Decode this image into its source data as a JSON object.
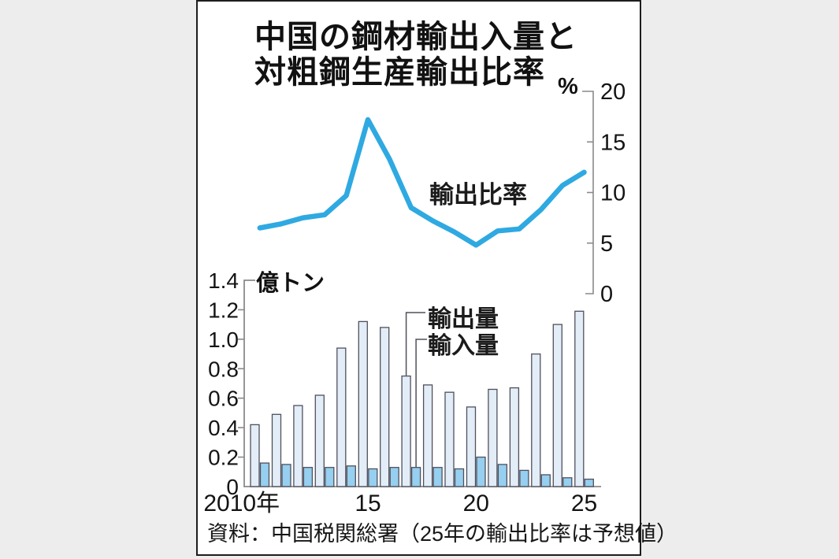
{
  "title": {
    "line1": "中国の鋼材輸出入量と",
    "line2": "対粗鋼生産輸出比率"
  },
  "source_note": "資料：中国税関総署（25年の輸出比率は予想値）",
  "colors": {
    "ratio_line": "#2fa9e1",
    "export_bar_fill": "#e2edf8",
    "import_bar_fill": "#96cfef",
    "bar_stroke": "#50505c",
    "axis": "#8a8a8a",
    "panel_border": "#1d1d1f",
    "background": "#ededee"
  },
  "chart_data": [
    {
      "type": "line",
      "name": "輸出比率",
      "unit": "%",
      "legend_position": "inline-center",
      "axis_side": "right",
      "grid": false,
      "x": [
        2010,
        2011,
        2012,
        2013,
        2014,
        2015,
        2016,
        2017,
        2018,
        2019,
        2020,
        2021,
        2022,
        2023,
        2024,
        2025
      ],
      "values": [
        6.5,
        6.9,
        7.5,
        7.8,
        9.7,
        17.2,
        13.3,
        8.5,
        7.2,
        6.1,
        4.8,
        6.2,
        6.4,
        8.3,
        10.7,
        12.0
      ],
      "ylim": [
        0,
        20
      ],
      "ytick_labels": [
        "20",
        "15",
        "10",
        "5",
        "0"
      ],
      "note": "25年の輸出比率は予想値"
    },
    {
      "type": "bar",
      "unit": "億トン",
      "axis_side": "left",
      "grid": false,
      "categories": [
        2010,
        2011,
        2012,
        2013,
        2014,
        2015,
        2016,
        2017,
        2018,
        2019,
        2020,
        2021,
        2022,
        2023,
        2024,
        2025
      ],
      "series": [
        {
          "name": "輸出量",
          "values": [
            0.42,
            0.49,
            0.55,
            0.62,
            0.94,
            1.12,
            1.08,
            0.75,
            0.69,
            0.64,
            0.54,
            0.66,
            0.67,
            0.9,
            1.1,
            1.19
          ]
        },
        {
          "name": "輸入量",
          "values": [
            0.16,
            0.15,
            0.13,
            0.13,
            0.14,
            0.12,
            0.13,
            0.13,
            0.13,
            0.12,
            0.2,
            0.15,
            0.11,
            0.08,
            0.06,
            0.05
          ]
        }
      ],
      "ylim": [
        0,
        1.4
      ],
      "ytick_labels": [
        "1.4",
        "1.2",
        "1.0",
        "0.8",
        "0.6",
        "0.4",
        "0.2",
        "0"
      ],
      "xtick_labels": [
        {
          "year": 2010,
          "label": "2010年"
        },
        {
          "year": 2015,
          "label": "15"
        },
        {
          "year": 2020,
          "label": "20"
        },
        {
          "year": 2025,
          "label": "25"
        }
      ]
    }
  ]
}
